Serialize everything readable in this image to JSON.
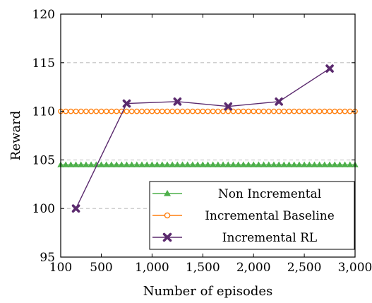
{
  "chart_data": {
    "type": "line",
    "title": "",
    "xlabel": "Number of episodes",
    "ylabel": "Reward",
    "xlim": [
      100,
      3000
    ],
    "ylim": [
      95,
      120
    ],
    "xticks": [
      100,
      500,
      1000,
      1500,
      2000,
      2500,
      3000
    ],
    "xtick_labels": [
      "100",
      "500",
      "1,000",
      "1,500",
      "2,000",
      "2,500",
      "3,000"
    ],
    "yticks": [
      95,
      100,
      105,
      110,
      115,
      120
    ],
    "ytick_labels": [
      "95",
      "100",
      "105",
      "110",
      "115",
      "120"
    ],
    "grid": "horizontal dashed",
    "legend_position": "bottom-right",
    "series": [
      {
        "name": "Non Incremental",
        "color": "#4daf4a",
        "marker": "triangle",
        "constant": 104.5,
        "x_range": [
          100,
          3000
        ],
        "marker_count": 59
      },
      {
        "name": "Incremental Baseline",
        "color": "#ff7f0e",
        "marker": "circle-open",
        "constant": 110,
        "x_range": [
          100,
          3000
        ],
        "marker_count": 59
      },
      {
        "name": "Incremental RL",
        "color": "#5b2a6e",
        "marker": "x-filled",
        "x": [
          250,
          750,
          1250,
          1750,
          2250,
          2750
        ],
        "y": [
          100,
          110.8,
          111,
          110.5,
          111,
          114.4
        ]
      }
    ]
  }
}
